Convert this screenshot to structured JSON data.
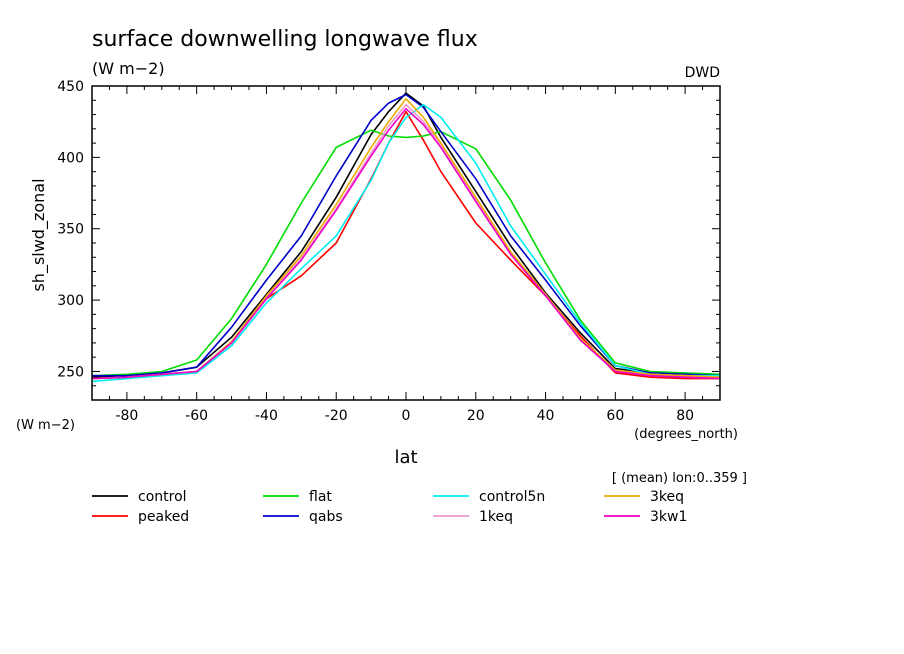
{
  "chart_data": {
    "type": "line",
    "title": "surface downwelling longwave flux",
    "units": "(W m−2)",
    "source": "DWD",
    "ylabel": "sh_slwd_zonal",
    "yunits": "(W m−2)",
    "xlabel": "lat",
    "xunits": "(degrees_north)",
    "note": "[ (mean) lon:0..359 ]",
    "xlim": [
      -90,
      90
    ],
    "ylim": [
      230,
      450
    ],
    "x_ticks": [
      -80,
      -60,
      -40,
      -20,
      0,
      20,
      40,
      60,
      80
    ],
    "y_ticks": [
      250,
      300,
      350,
      400,
      450
    ],
    "grid": false,
    "legend_position": "bottom",
    "x": [
      -90,
      -80,
      -70,
      -60,
      -50,
      -40,
      -30,
      -20,
      -10,
      -5,
      0,
      5,
      10,
      20,
      30,
      40,
      50,
      60,
      70,
      80,
      90
    ],
    "series": [
      {
        "name": "control",
        "color": "#000000",
        "values": [
          246,
          247,
          249,
          253,
          274,
          304,
          334,
          372,
          416,
          432,
          445,
          436,
          414,
          376,
          338,
          305,
          277,
          252,
          249,
          248,
          248
        ]
      },
      {
        "name": "peaked",
        "color": "#ff0000",
        "values": [
          245,
          246,
          248,
          250,
          270,
          301,
          317,
          340,
          385,
          410,
          432,
          412,
          390,
          354,
          328,
          303,
          275,
          249,
          246,
          245,
          245
        ]
      },
      {
        "name": "flat",
        "color": "#00dd00",
        "values": [
          247,
          248,
          250,
          258,
          287,
          325,
          368,
          407,
          419,
          415,
          414,
          415,
          418,
          406,
          370,
          326,
          286,
          256,
          250,
          249,
          248
        ]
      },
      {
        "name": "qabs",
        "color": "#0000cc",
        "values": [
          247,
          247,
          249,
          253,
          281,
          314,
          345,
          387,
          426,
          438,
          444,
          435,
          418,
          385,
          345,
          314,
          282,
          254,
          249,
          248,
          247
        ]
      },
      {
        "name": "control5n",
        "color": "#00eeee",
        "values": [
          243,
          245,
          247,
          249,
          268,
          298,
          322,
          345,
          384,
          410,
          428,
          437,
          428,
          396,
          352,
          318,
          284,
          254,
          248,
          247,
          247
        ]
      },
      {
        "name": "1keq",
        "color": "#ee99cc",
        "values": [
          245,
          246,
          248,
          250,
          271,
          302,
          329,
          364,
          403,
          422,
          437,
          425,
          409,
          371,
          333,
          304,
          273,
          251,
          248,
          247,
          246
        ]
      },
      {
        "name": "3keq",
        "color": "#eeaa00",
        "values": [
          245,
          246,
          248,
          250,
          271,
          303,
          331,
          367,
          407,
          425,
          441,
          428,
          410,
          372,
          334,
          304,
          273,
          251,
          248,
          247,
          246
        ]
      },
      {
        "name": "3kw1",
        "color": "#ee00cc",
        "values": [
          245,
          246,
          248,
          250,
          270,
          301,
          328,
          363,
          401,
          419,
          434,
          423,
          407,
          369,
          332,
          303,
          272,
          250,
          247,
          246,
          245
        ]
      }
    ]
  }
}
